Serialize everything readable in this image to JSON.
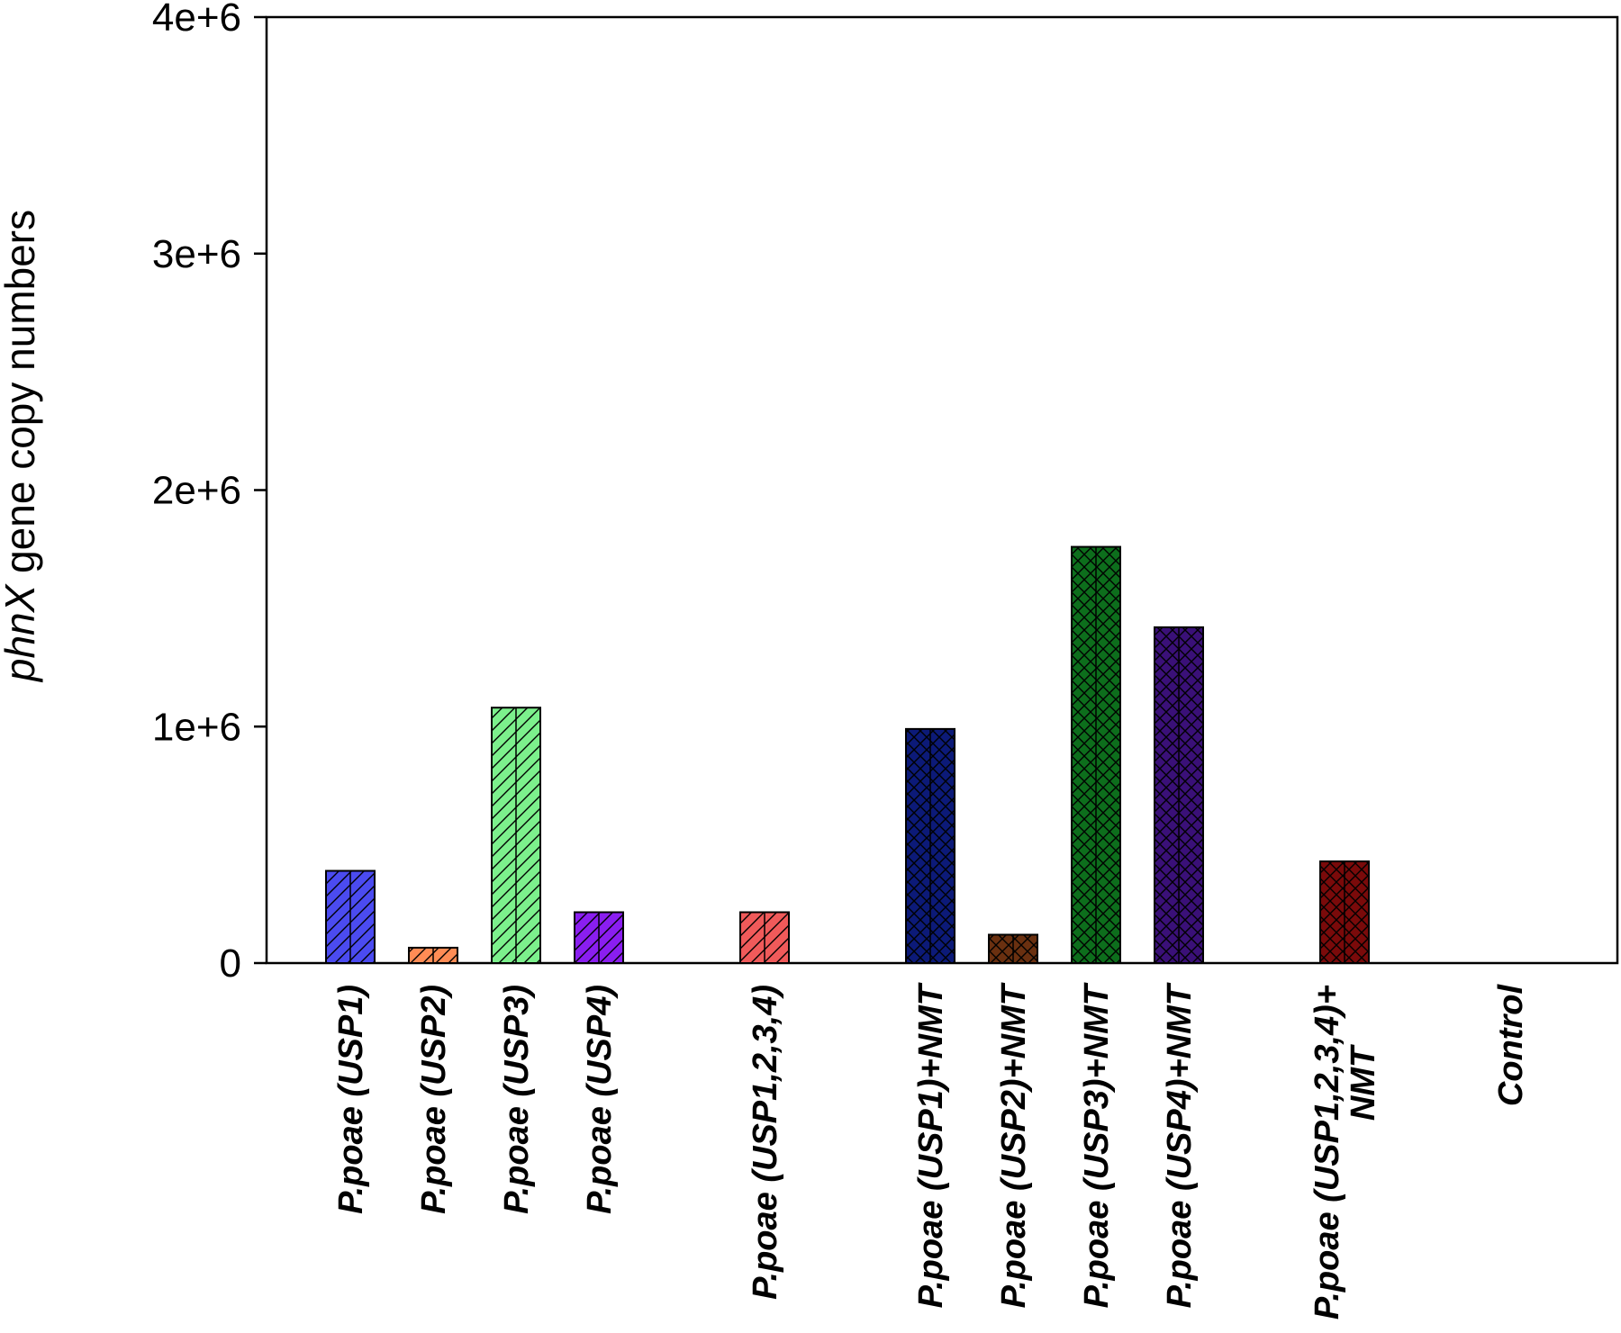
{
  "chart_data": {
    "type": "bar",
    "ylabel_italic": "phnX",
    "ylabel_rest": " gene copy numbers",
    "ylim": [
      0,
      4000000
    ],
    "yticks": [
      {
        "value": 0,
        "label": "0"
      },
      {
        "value": 1000000,
        "label": "1e+6"
      },
      {
        "value": 2000000,
        "label": "2e+6"
      },
      {
        "value": 3000000,
        "label": "3e+6"
      },
      {
        "value": 4000000,
        "label": "4e+6"
      }
    ],
    "grid": false,
    "legend": "none",
    "categories": [
      {
        "lines": [
          "P.poae (USP1)"
        ],
        "value": 390000,
        "color": "#4b4bf0",
        "pattern": "diag"
      },
      {
        "lines": [
          "P.poae (USP2)"
        ],
        "value": 65000,
        "color": "#ff8c55",
        "pattern": "diag"
      },
      {
        "lines": [
          "P.poae (USP3)"
        ],
        "value": 1080000,
        "color": "#7cf08c",
        "pattern": "diag"
      },
      {
        "lines": [
          "P.poae (USP4)"
        ],
        "value": 215000,
        "color": "#8a1ef0",
        "pattern": "diag"
      },
      {
        "lines": [
          ""
        ],
        "value": null,
        "color": "",
        "pattern": "none"
      },
      {
        "lines": [
          "P.poae (USP1,2,3,4)"
        ],
        "value": 215000,
        "color": "#f05a5a",
        "pattern": "diag"
      },
      {
        "lines": [
          ""
        ],
        "value": null,
        "color": "",
        "pattern": "none"
      },
      {
        "lines": [
          "P.poae (USP1)+NMT"
        ],
        "value": 990000,
        "color": "#0c1a78",
        "pattern": "cross"
      },
      {
        "lines": [
          "P.poae (USP2)+NMT"
        ],
        "value": 120000,
        "color": "#6a3010",
        "pattern": "cross"
      },
      {
        "lines": [
          "P.poae (USP3)+NMT"
        ],
        "value": 1760000,
        "color": "#0d6e1c",
        "pattern": "cross"
      },
      {
        "lines": [
          "P.poae (USP4)+NMT"
        ],
        "value": 1420000,
        "color": "#3a1078",
        "pattern": "cross"
      },
      {
        "lines": [
          ""
        ],
        "value": null,
        "color": "",
        "pattern": "none"
      },
      {
        "lines": [
          "P.poae (USP1,2,3,4)+",
          "NMT"
        ],
        "value": 430000,
        "color": "#7a0a0a",
        "pattern": "cross"
      },
      {
        "lines": [
          ""
        ],
        "value": null,
        "color": "",
        "pattern": "none"
      },
      {
        "lines": [
          "Control"
        ],
        "value": 0,
        "color": "",
        "pattern": "none"
      }
    ]
  }
}
